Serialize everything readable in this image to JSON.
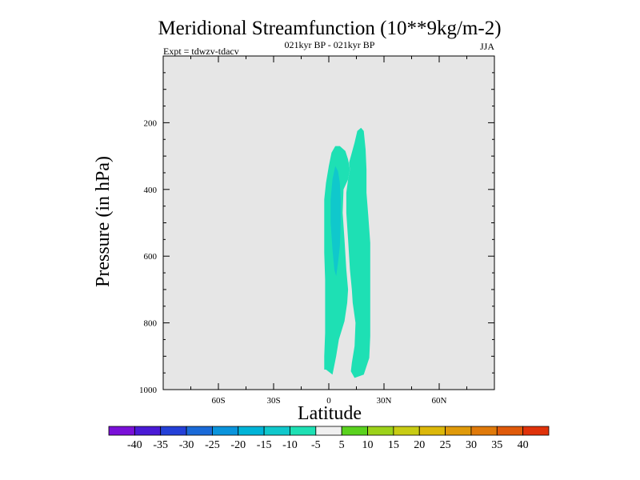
{
  "chart_data": {
    "type": "contour",
    "title": "Meridional Streamfunction (10**9kg/m-2)",
    "subtitle": "021kyr BP - 021kyr BP",
    "left_label": "Expt = tdwzv-tdacv",
    "right_label": "JJA",
    "xlabel": "Latitude",
    "ylabel": "Pressure (in hPa)",
    "xlim": [
      -90,
      90
    ],
    "ylim": [
      1000,
      0
    ],
    "x_ticks": [
      {
        "value": -60,
        "label": "60S"
      },
      {
        "value": -30,
        "label": "30S"
      },
      {
        "value": 0,
        "label": "0"
      },
      {
        "value": 30,
        "label": "30N"
      },
      {
        "value": 60,
        "label": "60N"
      }
    ],
    "y_ticks": [
      {
        "value": 200,
        "label": "200"
      },
      {
        "value": 400,
        "label": "400"
      },
      {
        "value": 600,
        "label": "600"
      },
      {
        "value": 800,
        "label": "800"
      },
      {
        "value": 1000,
        "label": "1000"
      }
    ],
    "background_color": "#e6e6e6",
    "contour_regions": [
      {
        "name": "-10 to -5 band",
        "color": "#1ee0b4",
        "polygon": [
          [
            -2.5,
            940
          ],
          [
            -1.5,
            940
          ],
          [
            2,
            955
          ],
          [
            4,
            900
          ],
          [
            5.5,
            850
          ],
          [
            8.5,
            795
          ],
          [
            10,
            740
          ],
          [
            10.5,
            700
          ],
          [
            9.5,
            640
          ],
          [
            8.5,
            550
          ],
          [
            7.5,
            470
          ],
          [
            8,
            400
          ],
          [
            10.5,
            370
          ],
          [
            11.5,
            340
          ],
          [
            10.5,
            310
          ],
          [
            9,
            285
          ],
          [
            6,
            270
          ],
          [
            3.5,
            270
          ],
          [
            1.5,
            290
          ],
          [
            0,
            330
          ],
          [
            -1.5,
            380
          ],
          [
            -2.5,
            430
          ],
          [
            -2.5,
            520
          ],
          [
            -2.5,
            590
          ],
          [
            -2,
            670
          ],
          [
            -2,
            740
          ],
          [
            -2,
            830
          ],
          [
            -2.5,
            900
          ]
        ]
      },
      {
        "name": "-10 to -5 band (second lobe)",
        "color": "#1ee0b4",
        "polygon": [
          [
            12,
            945
          ],
          [
            14,
            965
          ],
          [
            19,
            955
          ],
          [
            22,
            905
          ],
          [
            22.5,
            840
          ],
          [
            22.5,
            780
          ],
          [
            22.5,
            720
          ],
          [
            22.5,
            660
          ],
          [
            22.5,
            560
          ],
          [
            21.5,
            480
          ],
          [
            20.5,
            410
          ],
          [
            20.5,
            340
          ],
          [
            20,
            280
          ],
          [
            19,
            225
          ],
          [
            17.5,
            215
          ],
          [
            15.5,
            225
          ],
          [
            14,
            260
          ],
          [
            12,
            300
          ],
          [
            11,
            320
          ],
          [
            11.5,
            340
          ],
          [
            10.5,
            370
          ],
          [
            9.5,
            410
          ],
          [
            9.5,
            470
          ],
          [
            10.5,
            550
          ],
          [
            11.5,
            640
          ],
          [
            12.5,
            700
          ],
          [
            13,
            740
          ],
          [
            14.5,
            800
          ],
          [
            14,
            870
          ],
          [
            12.5,
            920
          ]
        ]
      },
      {
        "name": "-15 to -10 core",
        "color": "#10c8cc",
        "polygon": [
          [
            2,
            370
          ],
          [
            3.5,
            330
          ],
          [
            5,
            345
          ],
          [
            6,
            380
          ],
          [
            6.5,
            430
          ],
          [
            6.5,
            500
          ],
          [
            6,
            570
          ],
          [
            5,
            620
          ],
          [
            4,
            660
          ],
          [
            3,
            640
          ],
          [
            2,
            580
          ],
          [
            1,
            500
          ],
          [
            1,
            430
          ]
        ]
      }
    ],
    "colorbar": {
      "levels": [
        "-40",
        "-35",
        "-30",
        "-25",
        "-20",
        "-15",
        "-10",
        "-5",
        "5",
        "10",
        "15",
        "20",
        "25",
        "30",
        "35",
        "40"
      ],
      "colors": [
        "#7a10d8",
        "#4a1ad6",
        "#2440d8",
        "#1a6ad8",
        "#0a94dc",
        "#00b4d8",
        "#10c8cc",
        "#1ee0b4",
        "#f0f0f0",
        "#5ad21e",
        "#9cd21a",
        "#c8cc14",
        "#dcb80a",
        "#e09a0a",
        "#e07a0a",
        "#e05a0a",
        "#e0320a"
      ]
    }
  }
}
